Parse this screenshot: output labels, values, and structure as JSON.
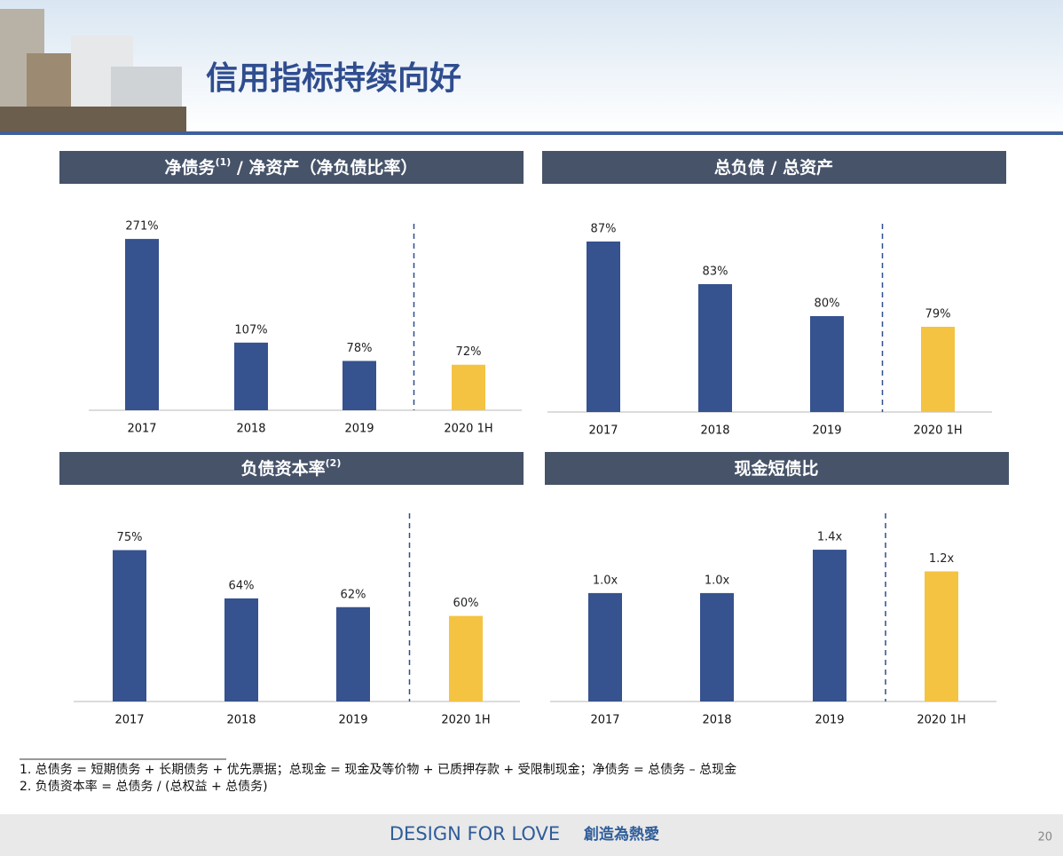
{
  "title": "信用指标持续向好",
  "chart_data": [
    {
      "type": "bar",
      "title": [
        "净债务",
        "(1)",
        " / 净资产（净负债比率）"
      ],
      "categories": [
        "2017",
        "2018",
        "2019",
        "2020 1H"
      ],
      "values": [
        271,
        107,
        78,
        72
      ],
      "value_labels": [
        "271%",
        "107%",
        "78%",
        "72%"
      ],
      "colors": [
        "#36528f",
        "#36528f",
        "#36528f",
        "#f5c342"
      ],
      "ylim": [
        0,
        295
      ]
    },
    {
      "type": "bar",
      "title": [
        "总负债 / 总资产"
      ],
      "categories": [
        "2017",
        "2018",
        "2019",
        "2020 1H"
      ],
      "values": [
        87,
        83,
        80,
        79
      ],
      "value_labels": [
        "87%",
        "83%",
        "80%",
        "79%"
      ],
      "colors": [
        "#36528f",
        "#36528f",
        "#36528f",
        "#f5c342"
      ],
      "ylim": [
        71,
        88.5
      ]
    },
    {
      "type": "bar",
      "title": [
        "负债资本率",
        "(2)"
      ],
      "categories": [
        "2017",
        "2018",
        "2019",
        "2020 1H"
      ],
      "values": [
        75,
        64,
        62,
        60
      ],
      "value_labels": [
        "75%",
        "64%",
        "62%",
        "60%"
      ],
      "colors": [
        "#36528f",
        "#36528f",
        "#36528f",
        "#f5c342"
      ],
      "ylim": [
        40.5,
        83
      ]
    },
    {
      "type": "bar",
      "title": [
        "现金短债比"
      ],
      "categories": [
        "2017",
        "2018",
        "2019",
        "2020 1H"
      ],
      "values": [
        1.0,
        1.0,
        1.4,
        1.2
      ],
      "value_labels": [
        "1.0x",
        "1.0x",
        "1.4x",
        "1.2x"
      ],
      "colors": [
        "#36528f",
        "#36528f",
        "#36528f",
        "#f5c342"
      ],
      "ylim": [
        0,
        1.72
      ]
    }
  ],
  "footnotes": [
    "1.  总债务 = 短期债务 + 长期债务 + 优先票据；总现金 = 现金及等价物 + 已质押存款 + 受限制现金；净债务 = 总债务 – 总现金",
    "2.  负债资本率 = 总债务 / (总权益 + 总债务)"
  ],
  "footer": {
    "brand": "DESIGN FOR LOVE",
    "slogan": "創造為熱愛",
    "page": "20"
  }
}
